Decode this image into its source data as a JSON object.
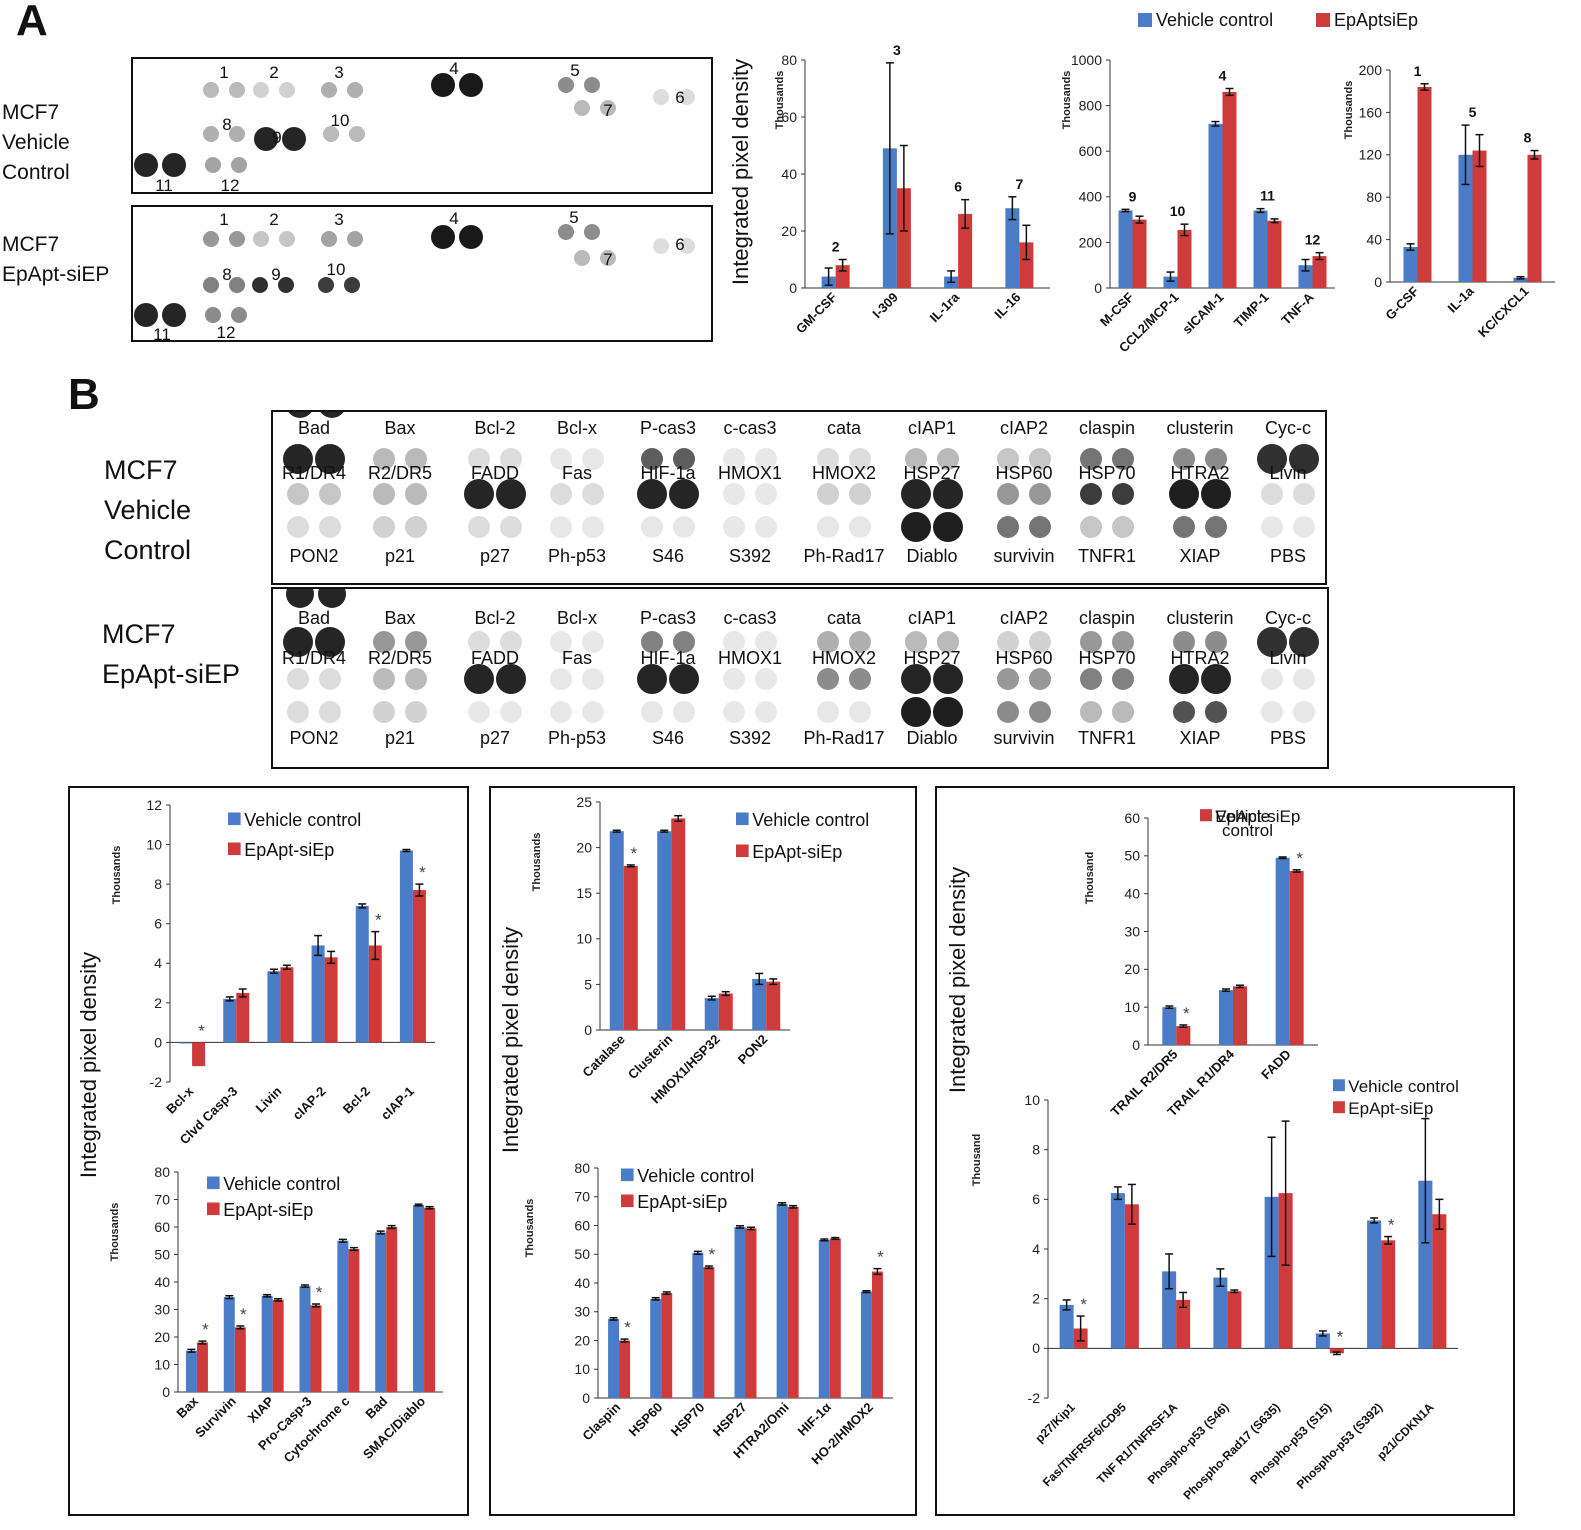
{
  "panel_a": {
    "letter": "A",
    "blot_top_label": [
      "MCF7",
      "Vehicle",
      "Control"
    ],
    "blot_bottom_label": [
      "MCF7",
      "EpApt-siEP"
    ],
    "spot_numbers": [
      "1",
      "2",
      "3",
      "4",
      "5",
      "6",
      "7",
      "8",
      "9",
      "10",
      "11",
      "12"
    ],
    "y_axis_label": "Integrated pixel density",
    "legend": [
      "Vehicle control",
      "EpAptsiEp"
    ]
  },
  "panel_b": {
    "letter": "B",
    "blot_top_label": [
      "MCF7",
      "Vehicle",
      "Control"
    ],
    "blot_bottom_label": [
      "MCF7",
      "EpApt-siEP"
    ],
    "array_rows": [
      [
        "Bad",
        "Bax",
        "Bcl-2",
        "Bcl-x",
        "P-cas3",
        "c-cas3",
        "cata",
        "cIAP1",
        "cIAP2",
        "claspin",
        "clusterin",
        "Cyc-c"
      ],
      [
        "R1/DR4",
        "R2/DR5",
        "FADD",
        "Fas",
        "HIF-1a",
        "HMOX1",
        "HMOX2",
        "HSP27",
        "HSP60",
        "HSP70",
        "HTRA2",
        "Livin"
      ],
      [
        "PON2",
        "p21",
        "p27",
        "Ph-p53",
        "S46",
        "S392",
        "Ph-Rad17",
        "Diablo",
        "survivin",
        "TNFR1",
        "XIAP",
        "PBS"
      ]
    ],
    "y_axis_label": "Integrated pixel density"
  },
  "colors": {
    "vehicle": "#4a7cc7",
    "treated": "#cf3a3a"
  },
  "chart_data": [
    {
      "id": "a1",
      "type": "bar",
      "units_label": "Thousands",
      "categories": [
        "GM-CSF",
        "I-309",
        "IL-1ra",
        "IL-16"
      ],
      "series": [
        {
          "name": "Vehicle control",
          "values": [
            4,
            49,
            4,
            28
          ],
          "errors": [
            3,
            30,
            2,
            4
          ]
        },
        {
          "name": "EpAptsiEp",
          "values": [
            8,
            35,
            26,
            16
          ],
          "errors": [
            2,
            15,
            5,
            6
          ]
        }
      ],
      "labels": [
        "2",
        "3",
        "6",
        "7"
      ],
      "yticks": [
        0,
        20,
        40,
        60,
        80
      ],
      "ylim": [
        0,
        80
      ]
    },
    {
      "id": "a2",
      "type": "bar",
      "units_label": "Thousands",
      "categories": [
        "M-CSF",
        "CCL2/MCP-1",
        "sICAM-1",
        "TIMP-1",
        "TNF-A"
      ],
      "series": [
        {
          "name": "Vehicle control",
          "values": [
            340,
            50,
            720,
            340,
            100
          ],
          "errors": [
            5,
            20,
            10,
            8,
            25
          ]
        },
        {
          "name": "EpAptsiEp",
          "values": [
            300,
            255,
            860,
            295,
            140
          ],
          "errors": [
            15,
            25,
            15,
            8,
            15
          ]
        }
      ],
      "labels": [
        "9",
        "10",
        "4",
        "11",
        "12"
      ],
      "yticks": [
        0,
        200,
        400,
        600,
        800,
        1000
      ],
      "ylim": [
        0,
        1000
      ]
    },
    {
      "id": "a3",
      "type": "bar",
      "units_label": "Thousands",
      "categories": [
        "G-CSF",
        "IL-1a",
        "KC/CXCL1"
      ],
      "series": [
        {
          "name": "Vehicle control",
          "values": [
            33,
            120,
            4
          ],
          "errors": [
            3,
            28,
            1
          ]
        },
        {
          "name": "EpAptsiEp",
          "values": [
            184,
            124,
            120
          ],
          "errors": [
            3,
            15,
            4
          ]
        }
      ],
      "labels": [
        "1",
        "5",
        "8"
      ],
      "yticks": [
        0,
        40,
        80,
        120,
        160,
        200
      ],
      "ylim": [
        0,
        200
      ]
    },
    {
      "id": "b1",
      "type": "bar",
      "units_label": "Thousands",
      "legend": [
        "Vehicle control",
        "EpApt-siEp"
      ],
      "categories": [
        "Bcl-x",
        "Clvd Casp-3",
        "Livin",
        "cIAP-2",
        "Bcl-2",
        "cIAP-1"
      ],
      "series": [
        {
          "name": "Vehicle control",
          "values": [
            0,
            2.2,
            3.6,
            4.9,
            6.9,
            9.7
          ],
          "errors": [
            0,
            0.1,
            0.1,
            0.5,
            0.1,
            0.05
          ]
        },
        {
          "name": "EpApt-siEp",
          "values": [
            -1.2,
            2.5,
            3.8,
            4.3,
            4.9,
            7.7
          ],
          "errors": [
            0,
            0.2,
            0.1,
            0.3,
            0.7,
            0.3
          ]
        }
      ],
      "significant": [
        true,
        false,
        false,
        false,
        true,
        true
      ],
      "yticks": [
        -2,
        0,
        2,
        4,
        6,
        8,
        10,
        12
      ],
      "ylim": [
        -2,
        12
      ]
    },
    {
      "id": "b2",
      "type": "bar",
      "units_label": "Thousands",
      "legend": [
        "Vehicle control",
        "EpApt-siEp"
      ],
      "categories": [
        "Bax",
        "Survivin",
        "XIAP",
        "Pro-Casp-3",
        "Cytochrome c",
        "Bad",
        "SMAC/Diablo"
      ],
      "series": [
        {
          "name": "Vehicle control",
          "values": [
            15,
            34.5,
            35,
            38.5,
            55,
            58,
            68
          ],
          "errors": [
            0.5,
            0.5,
            0.4,
            0.4,
            0.5,
            0.5,
            0.3
          ]
        },
        {
          "name": "EpApt-siEp",
          "values": [
            18,
            23.5,
            33.5,
            31.5,
            52,
            60,
            67
          ],
          "errors": [
            0.5,
            0.5,
            0.4,
            0.5,
            0.5,
            0.5,
            0.4
          ]
        }
      ],
      "significant": [
        true,
        true,
        false,
        true,
        false,
        false,
        false
      ],
      "yticks": [
        0,
        10,
        20,
        30,
        40,
        50,
        60,
        70,
        80
      ],
      "ylim": [
        0,
        80
      ]
    },
    {
      "id": "b3",
      "type": "bar",
      "units_label": "Thousands",
      "legend": [
        "Vehicle control",
        "EpApt-siEp"
      ],
      "categories": [
        "Catalase",
        "Clusterin",
        "HMOX1/HSP32",
        "PON2"
      ],
      "series": [
        {
          "name": "Vehicle control",
          "values": [
            21.8,
            21.8,
            3.5,
            5.6
          ],
          "errors": [
            0.1,
            0.1,
            0.2,
            0.6
          ]
        },
        {
          "name": "EpApt-siEp",
          "values": [
            18,
            23.2,
            4,
            5.3
          ],
          "errors": [
            0.1,
            0.3,
            0.2,
            0.3
          ]
        }
      ],
      "significant": [
        true,
        false,
        false,
        false
      ],
      "yticks": [
        0,
        5,
        10,
        15,
        20,
        25
      ],
      "ylim": [
        0,
        25
      ]
    },
    {
      "id": "b4",
      "type": "bar",
      "units_label": "Thousands",
      "legend": [
        "Vehicle control",
        "EpApt-siEp"
      ],
      "categories": [
        "Claspin",
        "HSP60",
        "HSP70",
        "HSP27",
        "HTRA2/Omi",
        "HIF-1α",
        "HO-2/HMOX2"
      ],
      "series": [
        {
          "name": "Vehicle control",
          "values": [
            27.5,
            34.5,
            50.5,
            59.5,
            67.5,
            55,
            37
          ],
          "errors": [
            0.4,
            0.4,
            0.5,
            0.4,
            0.4,
            0.3,
            0.3
          ]
        },
        {
          "name": "EpApt-siEp",
          "values": [
            20,
            36.5,
            45.5,
            59,
            66.5,
            55.5,
            44
          ],
          "errors": [
            0.5,
            0.4,
            0.4,
            0.4,
            0.4,
            0.3,
            1.0
          ]
        }
      ],
      "significant": [
        true,
        false,
        true,
        false,
        false,
        false,
        true
      ],
      "yticks": [
        0,
        10,
        20,
        30,
        40,
        50,
        60,
        70,
        80
      ],
      "ylim": [
        0,
        80
      ]
    },
    {
      "id": "b5",
      "type": "bar",
      "units_label": "Thousand",
      "legend": [
        "Vehicle control",
        "EpApt-siEp"
      ],
      "categories": [
        "TRAIL R2/DR5",
        "TRAIL R1/DR4",
        "FADD"
      ],
      "series": [
        {
          "name": "Vehicle control",
          "values": [
            10,
            14.5,
            49.5
          ],
          "errors": [
            0.3,
            0.3,
            0.2
          ]
        },
        {
          "name": "EpApt-siEp",
          "values": [
            5,
            15.5,
            46
          ],
          "errors": [
            0.3,
            0.3,
            0.3
          ]
        }
      ],
      "significant": [
        true,
        false,
        true
      ],
      "yticks": [
        0,
        10,
        20,
        30,
        40,
        50,
        60
      ],
      "ylim": [
        0,
        60
      ]
    },
    {
      "id": "b6",
      "type": "bar",
      "units_label": "Thousand",
      "legend": [
        "Vehicle control",
        "EpApt-siEp"
      ],
      "categories": [
        "p27/Kip1",
        "Fas/TNFRSF6/CD95",
        "TNF R1/TNFRSF1A",
        "Phospho-p53 (S46)",
        "Phospho-Rad17 (S635)",
        "Phospho-p53 (S15)",
        "Phospho-p53 (S392)",
        "p21/CDKN1A"
      ],
      "series": [
        {
          "name": "Vehicle control",
          "values": [
            1.75,
            6.25,
            3.1,
            2.85,
            6.1,
            0.6,
            5.15,
            6.75
          ],
          "errors": [
            0.2,
            0.25,
            0.7,
            0.35,
            2.4,
            0.1,
            0.1,
            2.5
          ]
        },
        {
          "name": "EpApt-siEp",
          "values": [
            0.8,
            5.8,
            1.95,
            2.3,
            6.25,
            -0.2,
            4.35,
            5.4
          ],
          "errors": [
            0.5,
            0.8,
            0.3,
            0.05,
            2.9,
            0.05,
            0.15,
            0.6
          ]
        }
      ],
      "significant": [
        true,
        false,
        false,
        false,
        false,
        true,
        true,
        false
      ],
      "yticks": [
        -2,
        0,
        2,
        4,
        6,
        8,
        10
      ],
      "ylim": [
        -2,
        10
      ]
    }
  ]
}
